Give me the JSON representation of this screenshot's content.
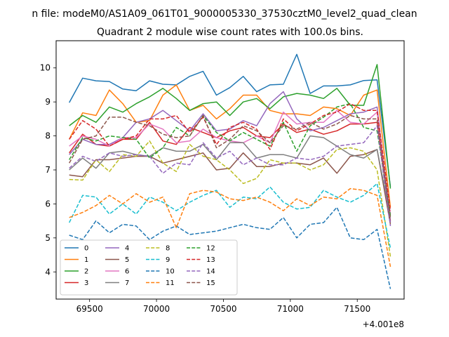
{
  "figure": {
    "suptitle": "n file: modeM0/AS1A09_061T01_9000005330_37530cztM0_level2_quad_clean",
    "offset_text": "+4.001e8"
  },
  "chart_data": {
    "type": "line",
    "title": "Quadrant 2 module wise count rates with 100.0s bins.",
    "xlabel": "",
    "ylabel": "",
    "x_offset": 400100000,
    "xlim": [
      69250,
      71850
    ],
    "ylim": [
      3.2,
      10.8
    ],
    "xticks": [
      69500,
      70000,
      70500,
      71000,
      71500
    ],
    "xtick_labels": [
      "69500",
      "70000",
      "70500",
      "71000",
      "71500"
    ],
    "yticks": [
      4,
      5,
      6,
      7,
      8,
      9,
      10
    ],
    "ytick_labels": [
      "4",
      "5",
      "6",
      "7",
      "8",
      "9",
      "10"
    ],
    "grid": false,
    "legend_placement": "lower-left",
    "x": [
      69348,
      69448,
      69548,
      69648,
      69748,
      69848,
      69948,
      70048,
      70148,
      70248,
      70348,
      70448,
      70548,
      70648,
      70748,
      70848,
      70948,
      71048,
      71148,
      71248,
      71348,
      71448,
      71548,
      71648,
      71748
    ],
    "series": [
      {
        "name": "0",
        "color": "#1f77b4",
        "dash": "solid",
        "values": [
          8.98,
          9.7,
          9.62,
          9.6,
          9.38,
          9.33,
          9.62,
          9.52,
          9.5,
          9.75,
          9.9,
          9.2,
          9.42,
          9.75,
          9.3,
          9.5,
          9.52,
          10.4,
          9.25,
          9.47,
          9.47,
          9.5,
          9.63,
          9.65,
          6.5
        ]
      },
      {
        "name": "1",
        "color": "#ff7f0e",
        "dash": "solid",
        "values": [
          7.9,
          8.68,
          8.6,
          9.35,
          8.95,
          8.4,
          8.45,
          9.2,
          9.5,
          8.75,
          8.9,
          8.5,
          8.8,
          9.2,
          9.2,
          8.75,
          8.65,
          8.65,
          8.6,
          8.85,
          8.8,
          8.6,
          9.2,
          9.35,
          5.9
        ]
      },
      {
        "name": "2",
        "color": "#2ca02c",
        "dash": "solid",
        "values": [
          8.3,
          8.6,
          8.4,
          8.85,
          8.7,
          8.95,
          9.15,
          9.4,
          9.1,
          8.75,
          8.95,
          9.0,
          8.6,
          9.0,
          9.1,
          8.8,
          9.15,
          9.25,
          9.2,
          9.1,
          9.4,
          8.9,
          8.9,
          10.1,
          6.45
        ]
      },
      {
        "name": "3",
        "color": "#d62728",
        "dash": "solid",
        "values": [
          7.5,
          8.05,
          7.75,
          7.7,
          7.9,
          7.9,
          8.4,
          7.85,
          7.75,
          8.25,
          8.1,
          7.95,
          8.15,
          8.25,
          8.0,
          7.95,
          8.35,
          8.1,
          8.2,
          8.05,
          8.15,
          8.35,
          8.35,
          8.4,
          5.5
        ]
      },
      {
        "name": "4",
        "color": "#9467bd",
        "dash": "solid",
        "values": [
          7.45,
          7.9,
          7.75,
          7.75,
          7.95,
          8.4,
          8.5,
          8.75,
          8.45,
          8.15,
          8.65,
          8.15,
          8.2,
          8.45,
          8.3,
          8.95,
          9.3,
          8.5,
          8.15,
          8.25,
          8.45,
          8.65,
          8.7,
          8.85,
          5.45
        ]
      },
      {
        "name": "5",
        "color": "#8c564b",
        "dash": "solid",
        "values": [
          6.85,
          6.8,
          7.3,
          7.3,
          7.35,
          7.4,
          7.4,
          7.2,
          7.3,
          7.4,
          7.5,
          7.0,
          7.05,
          7.5,
          7.1,
          7.1,
          7.2,
          7.2,
          7.15,
          7.35,
          6.9,
          7.4,
          7.45,
          7.6,
          5.4
        ]
      },
      {
        "name": "6",
        "color": "#e377c2",
        "dash": "solid",
        "values": [
          7.7,
          8.0,
          7.9,
          7.7,
          7.95,
          7.95,
          8.35,
          8.2,
          7.8,
          7.85,
          8.2,
          7.95,
          7.85,
          7.8,
          8.0,
          7.8,
          8.7,
          8.35,
          8.4,
          8.4,
          8.75,
          8.4,
          8.35,
          8.7,
          5.7
        ]
      },
      {
        "name": "7",
        "color": "#7f7f7f",
        "dash": "solid",
        "values": [
          7.0,
          7.35,
          7.05,
          7.5,
          7.55,
          7.45,
          7.4,
          7.65,
          7.55,
          7.55,
          7.75,
          7.3,
          7.8,
          7.8,
          7.35,
          7.45,
          7.45,
          7.35,
          8.0,
          7.95,
          7.7,
          7.45,
          7.35,
          7.6,
          5.6
        ]
      },
      {
        "name": "8",
        "color": "#bcbd22",
        "dash": "dashed",
        "values": [
          6.72,
          6.7,
          7.3,
          6.95,
          7.45,
          7.4,
          7.85,
          7.2,
          6.95,
          7.75,
          7.4,
          7.3,
          7.0,
          6.6,
          6.75,
          7.3,
          7.2,
          7.2,
          7.0,
          7.15,
          7.6,
          7.65,
          7.55,
          7.0,
          4.45
        ]
      },
      {
        "name": "9",
        "color": "#17becf",
        "dash": "dashed",
        "values": [
          5.45,
          6.25,
          6.2,
          5.7,
          6.0,
          5.7,
          6.2,
          6.05,
          5.8,
          6.05,
          6.25,
          6.4,
          5.9,
          6.2,
          6.15,
          6.5,
          6.05,
          5.85,
          5.9,
          6.4,
          6.2,
          6.05,
          6.25,
          6.6,
          4.7
        ]
      },
      {
        "name": "10",
        "color": "#1f77b4",
        "dash": "dashed",
        "values": [
          5.08,
          4.95,
          5.5,
          5.15,
          5.4,
          5.35,
          4.95,
          5.2,
          5.35,
          5.1,
          5.15,
          5.2,
          5.3,
          5.4,
          5.3,
          5.25,
          5.6,
          5.0,
          5.4,
          5.45,
          5.9,
          5.0,
          4.95,
          5.25,
          3.5
        ]
      },
      {
        "name": "11",
        "color": "#ff7f0e",
        "dash": "dashed",
        "values": [
          5.6,
          5.75,
          5.95,
          6.25,
          6.0,
          6.3,
          6.05,
          6.2,
          5.3,
          6.3,
          6.4,
          6.35,
          6.15,
          6.1,
          6.2,
          6.05,
          5.8,
          6.15,
          5.95,
          6.2,
          6.15,
          6.45,
          6.4,
          6.25,
          4.15
        ]
      },
      {
        "name": "12",
        "color": "#2ca02c",
        "dash": "dashed",
        "values": [
          7.3,
          7.95,
          7.85,
          8.0,
          7.95,
          7.9,
          7.35,
          7.65,
          8.25,
          8.0,
          8.6,
          8.1,
          7.85,
          8.1,
          7.9,
          7.7,
          8.4,
          7.55,
          8.3,
          8.55,
          8.85,
          8.95,
          8.25,
          8.15,
          5.65
        ]
      },
      {
        "name": "13",
        "color": "#d62728",
        "dash": "dashed",
        "values": [
          7.9,
          8.45,
          8.2,
          7.7,
          7.9,
          8.0,
          8.5,
          8.5,
          8.6,
          8.1,
          8.55,
          7.75,
          8.25,
          8.4,
          8.2,
          7.6,
          8.5,
          8.15,
          8.35,
          8.6,
          8.7,
          8.95,
          8.75,
          8.75,
          5.8
        ]
      },
      {
        "name": "14",
        "color": "#9467bd",
        "dash": "dashed",
        "values": [
          7.05,
          7.4,
          7.25,
          7.5,
          7.4,
          7.45,
          7.4,
          6.9,
          7.2,
          7.15,
          7.8,
          7.35,
          7.55,
          7.15,
          7.35,
          7.15,
          7.15,
          7.35,
          7.3,
          7.4,
          7.7,
          7.75,
          7.8,
          8.3,
          5.35
        ]
      },
      {
        "name": "15",
        "color": "#8c564b",
        "dash": "dashed",
        "values": [
          7.2,
          7.9,
          8.0,
          8.55,
          8.55,
          8.4,
          8.3,
          8.05,
          7.95,
          8.0,
          8.6,
          7.65,
          7.9,
          8.3,
          8.15,
          7.8,
          8.3,
          8.2,
          8.4,
          8.2,
          8.35,
          8.6,
          8.5,
          8.5,
          5.55
        ]
      }
    ]
  }
}
